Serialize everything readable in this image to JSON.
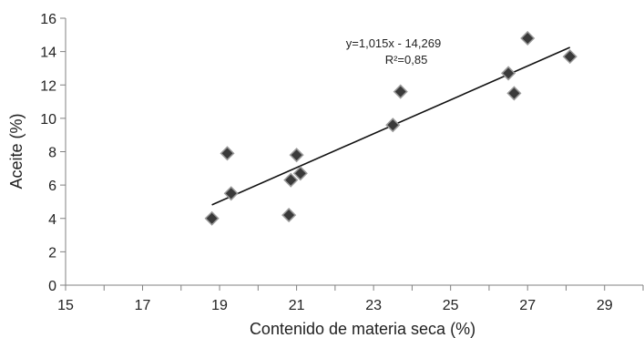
{
  "chart_data": {
    "type": "scatter",
    "xlabel": "Contenido de materia seca  (%)",
    "ylabel": "Aceite (%)",
    "xlim": [
      15,
      30
    ],
    "ylim": [
      0,
      16
    ],
    "x_ticks": [
      "15",
      "17",
      "19",
      "21",
      "23",
      "25",
      "27",
      "29"
    ],
    "y_ticks": [
      "0",
      "2",
      "4",
      "6",
      "8",
      "10",
      "12",
      "14",
      "16"
    ],
    "grid": false,
    "legend": "none",
    "marker": "diamond",
    "marker_color": "#3a3a3a",
    "points": [
      {
        "x": 18.8,
        "y": 4.0
      },
      {
        "x": 19.2,
        "y": 7.9
      },
      {
        "x": 19.3,
        "y": 5.5
      },
      {
        "x": 20.8,
        "y": 4.2
      },
      {
        "x": 20.85,
        "y": 6.3
      },
      {
        "x": 21.0,
        "y": 7.8
      },
      {
        "x": 21.1,
        "y": 6.7
      },
      {
        "x": 23.5,
        "y": 9.6
      },
      {
        "x": 23.7,
        "y": 11.6
      },
      {
        "x": 26.5,
        "y": 12.7
      },
      {
        "x": 26.65,
        "y": 11.5
      },
      {
        "x": 27.0,
        "y": 14.8
      },
      {
        "x": 28.1,
        "y": 13.7
      }
    ],
    "trendline": {
      "slope": 1.015,
      "intercept": -14.269,
      "x_range": [
        18.8,
        28.1
      ]
    },
    "annotations": {
      "equation": "y=1,015x - 14,269",
      "r2": "R²=0,85"
    }
  }
}
